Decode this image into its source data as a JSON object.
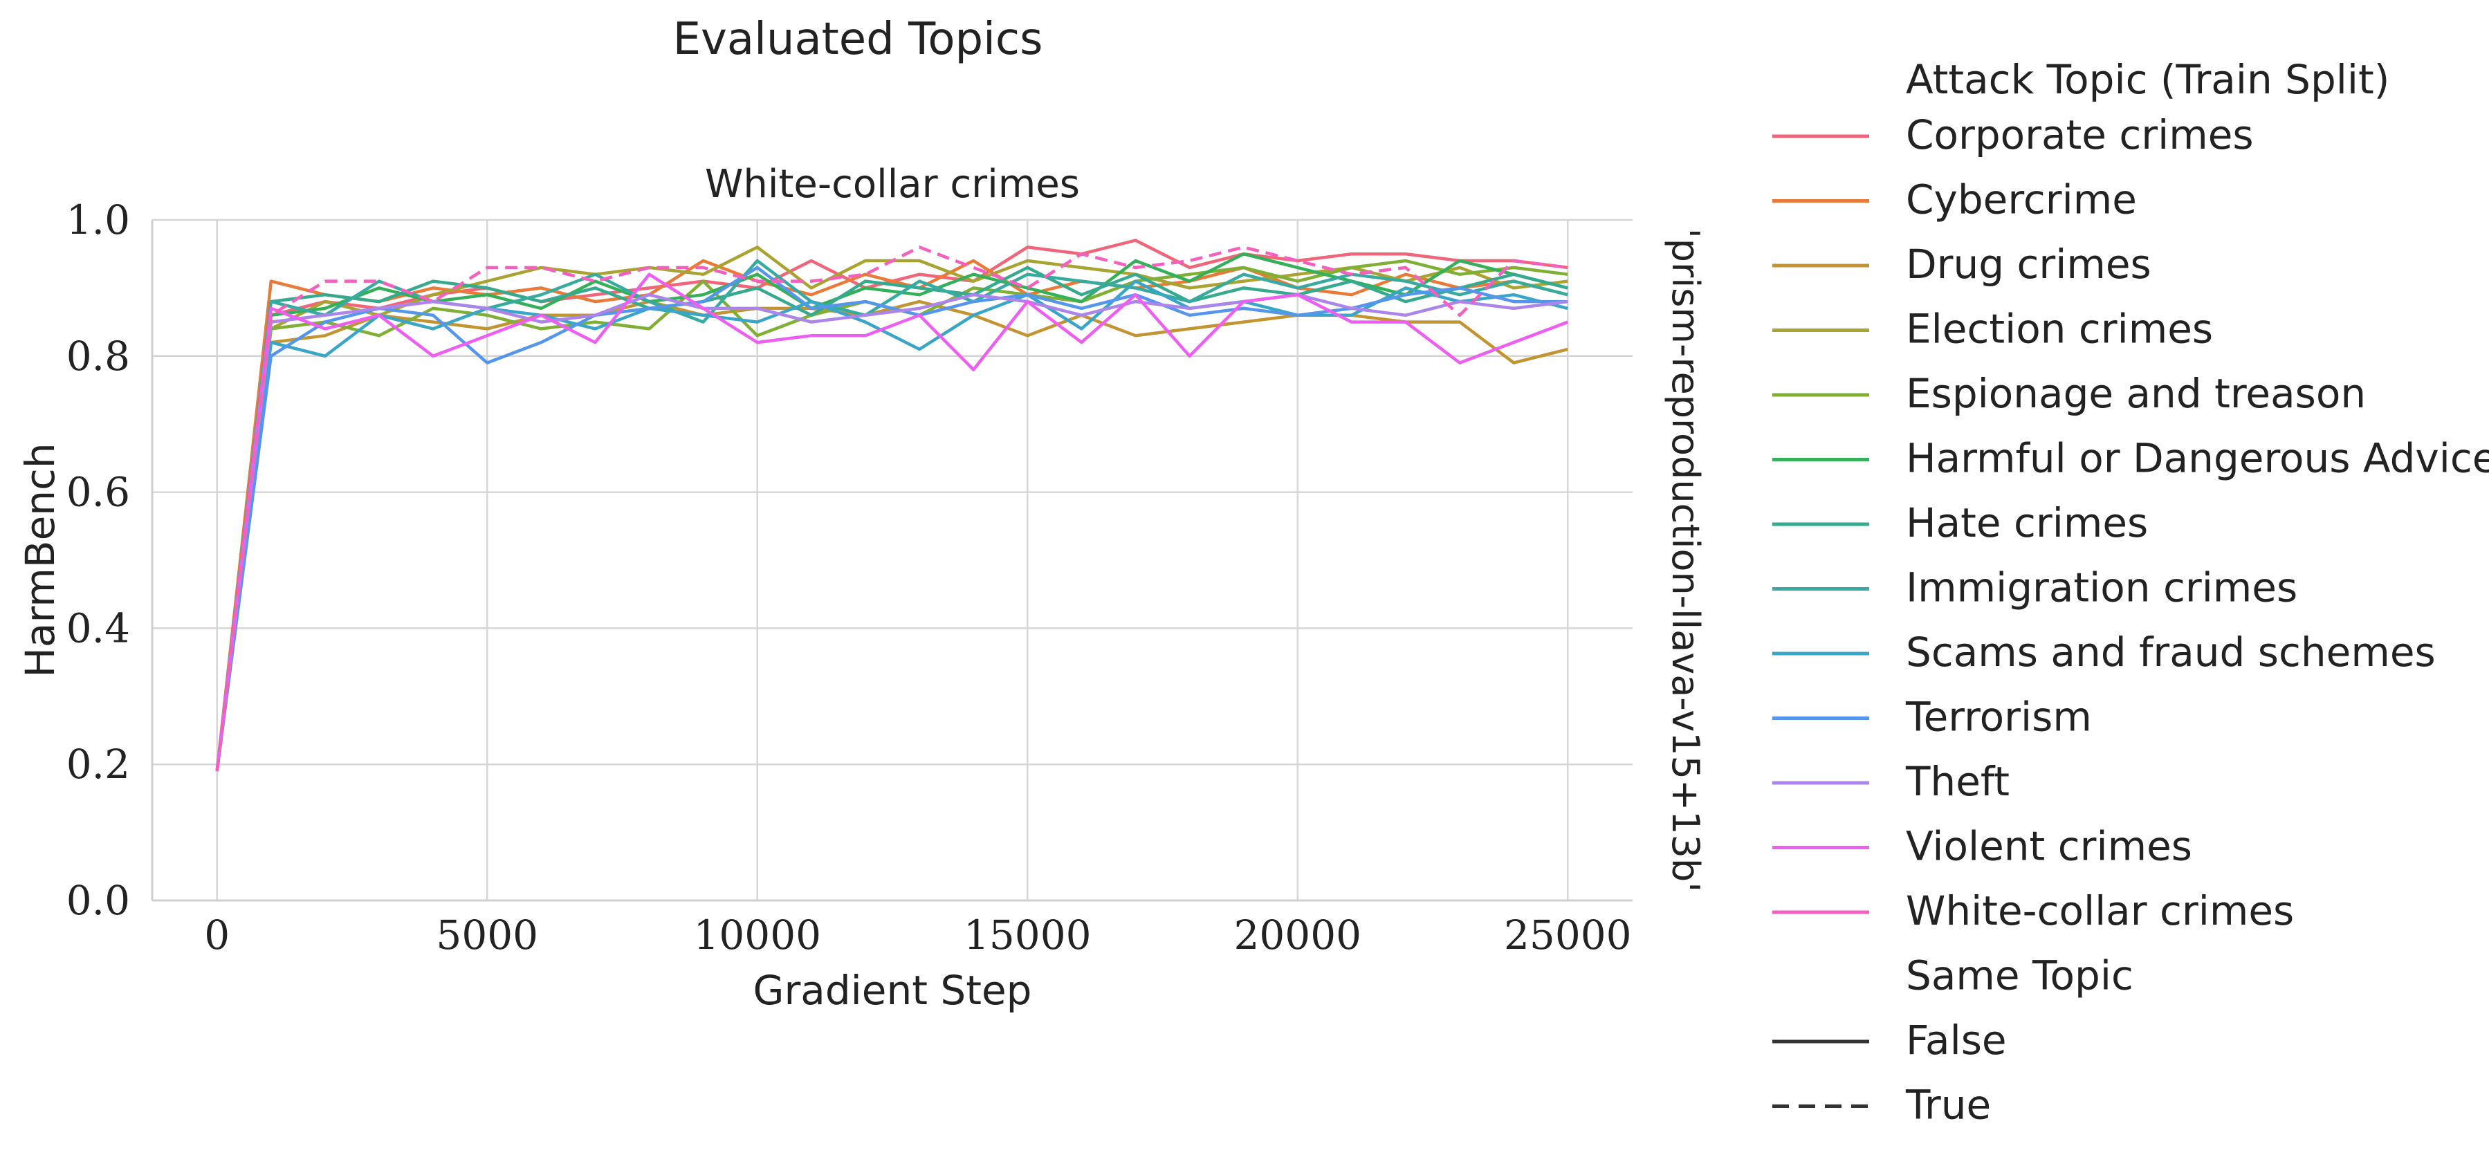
{
  "figure_title": "Evaluated Topics",
  "facet_row_label": "'prism-reproduction-llava-v15+13b'",
  "legend": {
    "hue_title": "Attack Topic (Train Split)",
    "style_title": "Same Topic",
    "style_entries": [
      {
        "label": "False",
        "dash": "solid"
      },
      {
        "label": "True",
        "dash": "dashed"
      }
    ]
  },
  "chart_data": {
    "type": "line",
    "title": "White-collar crimes",
    "xlabel": "Gradient Step",
    "ylabel": "HarmBench",
    "xlim": [
      -1200,
      26200
    ],
    "ylim": [
      0.0,
      1.0
    ],
    "xticks": [
      0,
      5000,
      10000,
      15000,
      20000,
      25000
    ],
    "yticks": [
      0.0,
      0.2,
      0.4,
      0.6,
      0.8,
      1.0
    ],
    "xtick_labels": [
      "0",
      "5000",
      "10000",
      "15000",
      "20000",
      "25000"
    ],
    "ytick_labels": [
      "0.0",
      "0.2",
      "0.4",
      "0.6",
      "0.8",
      "1.0"
    ],
    "grid": true,
    "legend_position": "right, outside",
    "x": [
      0,
      1000,
      2000,
      3000,
      4000,
      5000,
      6000,
      7000,
      8000,
      9000,
      10000,
      11000,
      12000,
      13000,
      14000,
      15000,
      16000,
      17000,
      18000,
      19000,
      20000,
      21000,
      22000,
      23000,
      24000,
      25000
    ],
    "series": [
      {
        "name": "Corporate crimes",
        "color": "#f0657a",
        "dash": "solid",
        "values": [
          0.19,
          0.86,
          0.88,
          0.87,
          0.89,
          0.9,
          0.88,
          0.89,
          0.9,
          0.91,
          0.9,
          0.94,
          0.9,
          0.92,
          0.91,
          0.96,
          0.95,
          0.97,
          0.93,
          0.95,
          0.94,
          0.95,
          0.95,
          0.94,
          0.94,
          0.93
        ]
      },
      {
        "name": "Cybercrime",
        "color": "#e97a38",
        "dash": "solid",
        "values": [
          0.19,
          0.91,
          0.89,
          0.88,
          0.9,
          0.89,
          0.9,
          0.88,
          0.89,
          0.94,
          0.91,
          0.89,
          0.92,
          0.9,
          0.94,
          0.89,
          0.91,
          0.9,
          0.91,
          0.93,
          0.9,
          0.89,
          0.92,
          0.9,
          0.91,
          0.89
        ]
      },
      {
        "name": "Drug crimes",
        "color": "#c39432",
        "dash": "solid",
        "values": [
          0.19,
          0.82,
          0.83,
          0.86,
          0.85,
          0.84,
          0.86,
          0.86,
          0.88,
          0.86,
          0.87,
          0.87,
          0.86,
          0.88,
          0.86,
          0.83,
          0.86,
          0.83,
          0.84,
          0.85,
          0.86,
          0.86,
          0.85,
          0.85,
          0.79,
          0.81
        ]
      },
      {
        "name": "Election crimes",
        "color": "#a9a432",
        "dash": "solid",
        "values": [
          0.19,
          0.84,
          0.88,
          0.86,
          0.89,
          0.91,
          0.93,
          0.92,
          0.93,
          0.92,
          0.96,
          0.9,
          0.94,
          0.94,
          0.91,
          0.94,
          0.93,
          0.92,
          0.9,
          0.91,
          0.92,
          0.93,
          0.91,
          0.93,
          0.9,
          0.91
        ]
      },
      {
        "name": "Espionage and treason",
        "color": "#7faf34",
        "dash": "solid",
        "values": [
          0.19,
          0.84,
          0.85,
          0.83,
          0.87,
          0.86,
          0.84,
          0.85,
          0.84,
          0.91,
          0.83,
          0.86,
          0.88,
          0.86,
          0.9,
          0.89,
          0.88,
          0.91,
          0.92,
          0.93,
          0.91,
          0.93,
          0.94,
          0.92,
          0.93,
          0.92
        ]
      },
      {
        "name": "Harmful or Dangerous Advice",
        "color": "#33b058",
        "dash": "solid",
        "values": [
          0.19,
          0.86,
          0.87,
          0.9,
          0.88,
          0.89,
          0.87,
          0.91,
          0.88,
          0.89,
          0.92,
          0.87,
          0.9,
          0.89,
          0.92,
          0.9,
          0.88,
          0.94,
          0.91,
          0.95,
          0.93,
          0.91,
          0.89,
          0.94,
          0.92,
          0.9
        ]
      },
      {
        "name": "Hate crimes",
        "color": "#36aa8f",
        "dash": "solid",
        "values": [
          0.19,
          0.88,
          0.89,
          0.88,
          0.91,
          0.9,
          0.88,
          0.9,
          0.87,
          0.88,
          0.9,
          0.86,
          0.91,
          0.9,
          0.89,
          0.93,
          0.89,
          0.92,
          0.88,
          0.9,
          0.89,
          0.91,
          0.88,
          0.9,
          0.92,
          0.9
        ]
      },
      {
        "name": "Immigration crimes",
        "color": "#37ab9f",
        "dash": "solid",
        "values": [
          0.19,
          0.88,
          0.86,
          0.91,
          0.88,
          0.87,
          0.89,
          0.92,
          0.88,
          0.85,
          0.94,
          0.88,
          0.86,
          0.91,
          0.88,
          0.92,
          0.91,
          0.9,
          0.88,
          0.92,
          0.9,
          0.92,
          0.91,
          0.89,
          0.91,
          0.89
        ]
      },
      {
        "name": "Scams and fraud schemes",
        "color": "#39a6c7",
        "dash": "solid",
        "values": [
          0.19,
          0.82,
          0.8,
          0.86,
          0.84,
          0.87,
          0.86,
          0.84,
          0.87,
          0.86,
          0.85,
          0.88,
          0.85,
          0.81,
          0.86,
          0.89,
          0.84,
          0.91,
          0.87,
          0.88,
          0.86,
          0.86,
          0.9,
          0.88,
          0.89,
          0.87
        ]
      },
      {
        "name": "Terrorism",
        "color": "#5596ed",
        "dash": "solid",
        "values": [
          0.19,
          0.8,
          0.85,
          0.87,
          0.86,
          0.79,
          0.82,
          0.86,
          0.87,
          0.88,
          0.93,
          0.87,
          0.88,
          0.86,
          0.88,
          0.89,
          0.87,
          0.89,
          0.86,
          0.87,
          0.86,
          0.87,
          0.89,
          0.9,
          0.88,
          0.88
        ]
      },
      {
        "name": "Theft",
        "color": "#ac85ea",
        "dash": "solid",
        "values": [
          0.19,
          0.85,
          0.86,
          0.87,
          0.88,
          0.87,
          0.85,
          0.86,
          0.89,
          0.87,
          0.87,
          0.85,
          0.86,
          0.87,
          0.89,
          0.88,
          0.86,
          0.88,
          0.87,
          0.88,
          0.89,
          0.87,
          0.86,
          0.88,
          0.87,
          0.88
        ]
      },
      {
        "name": "Violent crimes",
        "color": "#ee5ef0",
        "dash": "solid",
        "values": [
          0.19,
          0.87,
          0.84,
          0.86,
          0.8,
          0.83,
          0.86,
          0.82,
          0.92,
          0.87,
          0.82,
          0.83,
          0.83,
          0.86,
          0.78,
          0.88,
          0.82,
          0.89,
          0.8,
          0.88,
          0.89,
          0.85,
          0.85,
          0.79,
          0.82,
          0.85
        ]
      },
      {
        "name": "White-collar crimes",
        "color": "#f55fbe",
        "dash": "dashed",
        "values": [
          0.19,
          0.86,
          0.91,
          0.91,
          0.88,
          0.93,
          0.93,
          0.91,
          0.93,
          0.93,
          0.91,
          0.91,
          0.92,
          0.96,
          0.93,
          0.9,
          0.95,
          0.93,
          0.94,
          0.96,
          0.94,
          0.92,
          0.93,
          0.86,
          0.94,
          0.93
        ]
      }
    ]
  }
}
